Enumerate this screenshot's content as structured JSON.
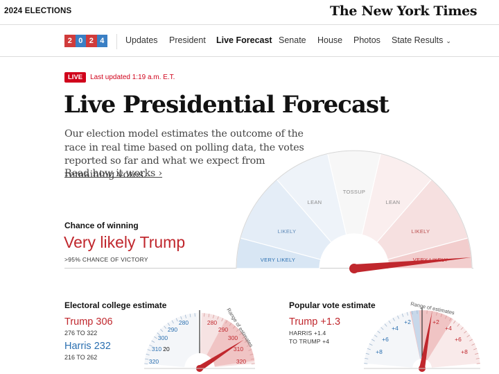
{
  "topbar": {
    "section": "2024 ELECTIONS",
    "logo": "The New York Times"
  },
  "nav": {
    "badge": [
      "2",
      "0",
      "2",
      "4"
    ],
    "links": [
      "Updates",
      "President",
      "Live Forecast",
      "Senate",
      "House",
      "Photos",
      "State Results"
    ],
    "active": "Live Forecast"
  },
  "live": {
    "tag": "LIVE",
    "updated": "Last updated 1:19 a.m. E.T."
  },
  "headline": "Live Presidential Forecast",
  "dek": "Our election model estimates the outcome of the race in real time based on polling data, the votes reported so far and what we expect from remaining votes.",
  "read_link": "Read how it works ›",
  "chance": {
    "label": "Chance of winning",
    "value": "Very likely Trump",
    "sub": ">95% CHANCE OF VICTORY",
    "gauge_labels": [
      "VERY LIKELY",
      "LIKELY",
      "LEAN",
      "TOSSUP",
      "LEAN",
      "LIKELY",
      "VERY LIKELY"
    ],
    "needle_position": 0.97
  },
  "electoral": {
    "title": "Electoral college estimate",
    "trump": "Trump 306",
    "trump_range": "276 TO 322",
    "harris": "Harris 232",
    "harris_range": "216 TO 262",
    "ticks_left": [
      "280",
      "290",
      "300",
      "310",
      "320"
    ],
    "ticks_right": [
      "280",
      "290",
      "300",
      "310",
      "320"
    ],
    "center_label": "20",
    "range_label": "Range of estimates"
  },
  "popular": {
    "title": "Popular vote estimate",
    "value": "Trump +1.3",
    "range1": "HARRIS +1.4",
    "range2": "TO TRUMP +4",
    "ticks_left": [
      "+2",
      "+4",
      "+6",
      "+8"
    ],
    "ticks_right": [
      "+2",
      "+4",
      "+6",
      "+8"
    ],
    "range_label": "Range of estimates"
  },
  "colors": {
    "red": "#c0272d",
    "blue": "#2a6fb0",
    "live": "#d0021b"
  }
}
